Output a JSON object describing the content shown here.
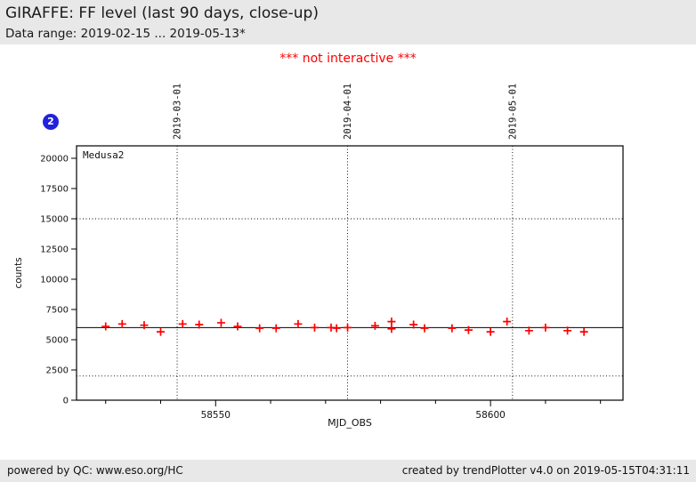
{
  "header": {
    "title": "GIRAFFE: FF level (last 90 days, close-up)",
    "subtitle": "Data range: 2019-02-15 ... 2019-05-13*"
  },
  "notice": "*** not interactive ***",
  "badge": {
    "label": "2",
    "color": "#2222dd"
  },
  "chart_data": {
    "type": "scatter",
    "title": "",
    "inset_label": "Medusa2",
    "xlabel": "MJD_OBS",
    "ylabel": "counts",
    "marker": "plus",
    "marker_color": "#ff0000",
    "frame_color": "#000000",
    "xlim": [
      58524.7,
      58624.1
    ],
    "ylim": [
      0,
      21030
    ],
    "x_major_ticks": [
      58550,
      58600
    ],
    "x_major_tick_labels": [
      "58550",
      "58600"
    ],
    "x_minor_ticks": [
      58530,
      58540,
      58560,
      58570,
      58580,
      58590,
      58610,
      58620
    ],
    "y_ticks": [
      0,
      2500,
      5000,
      7500,
      10000,
      12500,
      15000,
      17500,
      20000
    ],
    "y_tick_labels": [
      "0",
      "2500",
      "5000",
      "7500",
      "10000",
      "12500",
      "15000",
      "17500",
      "20000"
    ],
    "date_gridlines": [
      {
        "mjd": 58543,
        "label": "2019-03-01"
      },
      {
        "mjd": 58574,
        "label": "2019-04-01"
      },
      {
        "mjd": 58604,
        "label": "2019-05-01"
      }
    ],
    "reference_line_y": 6000,
    "threshold_lines_y": [
      2000,
      15000
    ],
    "grid": "dotted-thresholds-and-month-lines",
    "legend_position": "none",
    "points": [
      {
        "x": 58530,
        "y": 6100
      },
      {
        "x": 58533,
        "y": 6300
      },
      {
        "x": 58537,
        "y": 6200
      },
      {
        "x": 58540,
        "y": 5650
      },
      {
        "x": 58544,
        "y": 6300
      },
      {
        "x": 58547,
        "y": 6250
      },
      {
        "x": 58551,
        "y": 6400
      },
      {
        "x": 58554,
        "y": 6100
      },
      {
        "x": 58558,
        "y": 5950
      },
      {
        "x": 58561,
        "y": 5950
      },
      {
        "x": 58565,
        "y": 6300
      },
      {
        "x": 58568,
        "y": 6000
      },
      {
        "x": 58571,
        "y": 6000
      },
      {
        "x": 58572,
        "y": 5950
      },
      {
        "x": 58574,
        "y": 6000
      },
      {
        "x": 58579,
        "y": 6150
      },
      {
        "x": 58582,
        "y": 6500
      },
      {
        "x": 58582,
        "y": 5900
      },
      {
        "x": 58586,
        "y": 6250
      },
      {
        "x": 58588,
        "y": 5950
      },
      {
        "x": 58593,
        "y": 5950
      },
      {
        "x": 58596,
        "y": 5800
      },
      {
        "x": 58600,
        "y": 5650
      },
      {
        "x": 58603,
        "y": 6500
      },
      {
        "x": 58607,
        "y": 5750
      },
      {
        "x": 58610,
        "y": 6000
      },
      {
        "x": 58614,
        "y": 5750
      },
      {
        "x": 58617,
        "y": 5650
      }
    ]
  },
  "footer": {
    "left": "powered by QC: www.eso.org/HC",
    "right": "created by trendPlotter v4.0 on 2019-05-15T04:31:11"
  }
}
